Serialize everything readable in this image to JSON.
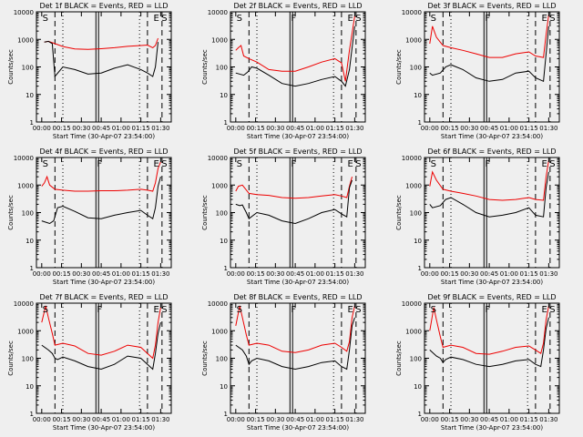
{
  "figure": {
    "xlabel": "Start Time (30-Apr-07 23:54:00)",
    "ylabel": "Counts/sec",
    "x_tick_labels": [
      "00:00",
      "00:15",
      "00:30",
      "00:45",
      "01:00",
      "01:15",
      "01:30"
    ],
    "y_tick_labels": [
      "1",
      "10",
      "100",
      "1000",
      "10000"
    ],
    "colors": {
      "events": "#000000",
      "lld": "#ee0000",
      "background": "#efefef"
    }
  },
  "chart_data": [
    {
      "type": "line",
      "title": "Det 1f BLACK = Events, RED = LLD",
      "xlabel": "Start Time (30-Apr-07 23:54:00)",
      "ylabel": "Counts/sec",
      "xlim": [
        -4,
        98
      ],
      "ylim": [
        1,
        10000
      ],
      "yscale": "log",
      "markers": [
        "S",
        "E",
        "S"
      ],
      "marker_x": [
        0,
        84,
        90
      ],
      "solid_lines": [
        41,
        43
      ],
      "dashed_lines": [
        10,
        80,
        91
      ],
      "dotted_lines": [
        16,
        74
      ],
      "series": [
        {
          "name": "LLD",
          "color": "#ee0000",
          "x": [
            2,
            5,
            10,
            16,
            25,
            35,
            45,
            55,
            65,
            75,
            80,
            84,
            86,
            88
          ],
          "y": [
            800,
            850,
            700,
            550,
            450,
            430,
            460,
            500,
            560,
            600,
            620,
            500,
            600,
            1100
          ]
        },
        {
          "name": "Events",
          "color": "#000000",
          "x": [
            2,
            5,
            8,
            10,
            16,
            25,
            35,
            45,
            55,
            65,
            75,
            80,
            84,
            86,
            88
          ],
          "y": [
            800,
            850,
            700,
            45,
            100,
            80,
            55,
            60,
            90,
            120,
            80,
            60,
            45,
            100,
            800
          ]
        }
      ]
    },
    {
      "type": "line",
      "title": "Det 2f BLACK = Events, RED = LLD",
      "xlabel": "Start Time (30-Apr-07 23:54:00)",
      "ylabel": "Counts/sec",
      "xlim": [
        -4,
        98
      ],
      "ylim": [
        1,
        10000
      ],
      "yscale": "log",
      "markers": [
        "S",
        "F",
        "E",
        "S"
      ],
      "marker_x": [
        0,
        41,
        84,
        90
      ],
      "solid_lines": [
        41,
        43
      ],
      "dashed_lines": [
        10,
        80,
        91
      ],
      "dotted_lines": [
        16,
        74
      ],
      "series": [
        {
          "name": "LLD",
          "color": "#ee0000",
          "x": [
            0,
            2,
            4,
            6,
            10,
            16,
            25,
            35,
            45,
            55,
            65,
            75,
            80,
            83,
            86,
            90
          ],
          "y": [
            400,
            500,
            600,
            250,
            200,
            150,
            80,
            70,
            70,
            100,
            150,
            200,
            140,
            30,
            400,
            7000
          ]
        },
        {
          "name": "Events",
          "color": "#000000",
          "x": [
            0,
            6,
            9,
            12,
            16,
            25,
            35,
            45,
            55,
            65,
            75,
            80,
            83,
            86,
            90
          ],
          "y": [
            60,
            50,
            65,
            100,
            90,
            50,
            25,
            20,
            25,
            35,
            45,
            30,
            20,
            80,
            3000
          ]
        }
      ]
    },
    {
      "type": "line",
      "title": "Det 3f BLACK = Events, RED = LLD",
      "xlabel": "Start Time (30-Apr-07 23:54:00)",
      "ylabel": "Counts/sec",
      "xlim": [
        -4,
        98
      ],
      "ylim": [
        1,
        10000
      ],
      "yscale": "log",
      "markers": [
        "S",
        "F",
        "E",
        "S"
      ],
      "marker_x": [
        0,
        41,
        84,
        90
      ],
      "solid_lines": [
        41,
        43
      ],
      "dashed_lines": [
        10,
        80,
        91
      ],
      "dotted_lines": [
        16,
        74
      ],
      "series": [
        {
          "name": "LLD",
          "color": "#ee0000",
          "x": [
            0,
            2,
            5,
            10,
            16,
            25,
            35,
            45,
            55,
            65,
            75,
            80,
            86,
            88,
            90
          ],
          "y": [
            700,
            3000,
            1200,
            600,
            500,
            400,
            300,
            220,
            220,
            300,
            350,
            250,
            220,
            1500,
            8000
          ]
        },
        {
          "name": "Events",
          "color": "#000000",
          "x": [
            0,
            2,
            8,
            12,
            16,
            25,
            35,
            45,
            55,
            65,
            75,
            80,
            86,
            88,
            90
          ],
          "y": [
            60,
            50,
            60,
            100,
            120,
            80,
            40,
            30,
            35,
            60,
            70,
            40,
            30,
            300,
            3000
          ]
        }
      ]
    },
    {
      "type": "line",
      "title": "Det 4f BLACK = Events, RED = LLD",
      "xlabel": "Start Time (30-Apr-07 23:54:00)",
      "ylabel": "Counts/sec",
      "xlim": [
        -4,
        98
      ],
      "ylim": [
        1,
        10000
      ],
      "yscale": "log",
      "markers": [
        "S",
        "F",
        "E",
        "S"
      ],
      "marker_x": [
        0,
        41,
        84,
        90
      ],
      "solid_lines": [
        41,
        43
      ],
      "dashed_lines": [
        10,
        80,
        91
      ],
      "dotted_lines": [
        16,
        74
      ],
      "series": [
        {
          "name": "LLD",
          "color": "#ee0000",
          "x": [
            0,
            2,
            4,
            6,
            10,
            16,
            25,
            35,
            45,
            55,
            65,
            75,
            80,
            84,
            86,
            88,
            90
          ],
          "y": [
            900,
            1200,
            2000,
            1000,
            700,
            650,
            600,
            600,
            620,
            620,
            650,
            700,
            650,
            600,
            1200,
            4000,
            7000
          ]
        },
        {
          "name": "Events",
          "color": "#000000",
          "x": [
            0,
            6,
            9,
            12,
            16,
            25,
            35,
            45,
            55,
            65,
            75,
            80,
            84,
            86,
            88,
            90
          ],
          "y": [
            50,
            40,
            50,
            150,
            170,
            110,
            65,
            60,
            80,
            100,
            120,
            80,
            60,
            150,
            900,
            2000
          ]
        }
      ]
    },
    {
      "type": "line",
      "title": "Det 5f BLACK = Events, RED = LLD",
      "xlabel": "Start Time (30-Apr-07 23:54:00)",
      "ylabel": "Counts/sec",
      "xlim": [
        -4,
        98
      ],
      "ylim": [
        1,
        10000
      ],
      "yscale": "log",
      "markers": [
        "S",
        "F",
        "E",
        "S"
      ],
      "marker_x": [
        0,
        41,
        84,
        90
      ],
      "solid_lines": [
        41,
        43
      ],
      "dashed_lines": [
        10,
        80,
        91
      ],
      "dotted_lines": [
        16,
        74
      ],
      "series": [
        {
          "name": "LLD",
          "color": "#ee0000",
          "x": [
            0,
            2,
            5,
            10,
            16,
            25,
            35,
            45,
            55,
            65,
            75,
            80,
            84,
            86,
            88
          ],
          "y": [
            600,
            900,
            1000,
            500,
            450,
            420,
            350,
            330,
            350,
            400,
            450,
            400,
            350,
            900,
            2000
          ]
        },
        {
          "name": "Events",
          "color": "#000000",
          "x": [
            0,
            3,
            5,
            8,
            10,
            16,
            25,
            35,
            45,
            55,
            65,
            75,
            80,
            84,
            86,
            88
          ],
          "y": [
            200,
            180,
            190,
            100,
            60,
            100,
            80,
            50,
            40,
            60,
            100,
            130,
            90,
            70,
            800,
            1500
          ]
        }
      ]
    },
    {
      "type": "line",
      "title": "Det 6f BLACK = Events, RED = LLD",
      "xlabel": "Start Time (30-Apr-07 23:54:00)",
      "ylabel": "Counts/sec",
      "xlim": [
        -4,
        98
      ],
      "ylim": [
        1,
        10000
      ],
      "yscale": "log",
      "markers": [
        "S",
        "F",
        "E",
        "S"
      ],
      "marker_x": [
        0,
        41,
        84,
        90
      ],
      "solid_lines": [
        41,
        43
      ],
      "dashed_lines": [
        10,
        80,
        91
      ],
      "dotted_lines": [
        16,
        74
      ],
      "series": [
        {
          "name": "LLD",
          "color": "#ee0000",
          "x": [
            0,
            2,
            5,
            10,
            16,
            25,
            35,
            45,
            55,
            65,
            75,
            80,
            86,
            88,
            90
          ],
          "y": [
            900,
            3000,
            1500,
            700,
            600,
            500,
            400,
            300,
            280,
            300,
            350,
            300,
            280,
            2000,
            8000
          ]
        },
        {
          "name": "Events",
          "color": "#000000",
          "x": [
            0,
            2,
            8,
            12,
            16,
            25,
            35,
            45,
            55,
            65,
            75,
            80,
            86,
            88,
            90
          ],
          "y": [
            200,
            150,
            180,
            300,
            350,
            200,
            100,
            70,
            80,
            100,
            150,
            80,
            70,
            800,
            3000
          ]
        }
      ]
    },
    {
      "type": "line",
      "title": "Det 7f BLACK = Events, RED = LLD",
      "xlabel": "Start Time (30-Apr-07 23:54:00)",
      "ylabel": "Counts/sec",
      "xlim": [
        -4,
        98
      ],
      "ylim": [
        1,
        10000
      ],
      "yscale": "log",
      "markers": [
        "S",
        "F",
        "E",
        "S"
      ],
      "marker_x": [
        0,
        41,
        84,
        90
      ],
      "solid_lines": [
        41,
        43
      ],
      "dashed_lines": [
        10,
        80,
        91
      ],
      "dotted_lines": [
        16,
        74
      ],
      "series": [
        {
          "name": "LLD",
          "color": "#ee0000",
          "x": [
            0,
            3,
            5,
            8,
            10,
            16,
            25,
            35,
            45,
            55,
            65,
            75,
            80,
            84,
            86,
            88,
            90
          ],
          "y": [
            2000,
            8000,
            3000,
            800,
            300,
            350,
            280,
            150,
            130,
            180,
            300,
            250,
            150,
            100,
            300,
            2000,
            7000
          ]
        },
        {
          "name": "Events",
          "color": "#000000",
          "x": [
            0,
            5,
            8,
            10,
            12,
            16,
            25,
            35,
            45,
            55,
            65,
            75,
            80,
            84,
            86,
            88,
            90
          ],
          "y": [
            300,
            200,
            150,
            100,
            90,
            110,
            80,
            50,
            40,
            60,
            120,
            100,
            60,
            40,
            150,
            800,
            2000
          ]
        }
      ]
    },
    {
      "type": "line",
      "title": "Det 8f BLACK = Events, RED = LLD",
      "xlabel": "Start Time (30-Apr-07 23:54:00)",
      "ylabel": "Counts/sec",
      "xlim": [
        -4,
        98
      ],
      "ylim": [
        1,
        10000
      ],
      "yscale": "log",
      "markers": [
        "S",
        "F",
        "E",
        "S"
      ],
      "marker_x": [
        0,
        41,
        84,
        90
      ],
      "solid_lines": [
        41,
        43
      ],
      "dashed_lines": [
        10,
        80,
        91
      ],
      "dotted_lines": [
        16,
        74
      ],
      "series": [
        {
          "name": "LLD",
          "color": "#ee0000",
          "x": [
            0,
            3,
            5,
            8,
            10,
            16,
            25,
            35,
            45,
            55,
            65,
            75,
            80,
            84,
            86,
            88,
            90
          ],
          "y": [
            1500,
            8000,
            3000,
            700,
            300,
            350,
            300,
            180,
            160,
            200,
            300,
            350,
            250,
            180,
            400,
            3000,
            8000
          ]
        },
        {
          "name": "Events",
          "color": "#000000",
          "x": [
            0,
            5,
            8,
            10,
            12,
            16,
            25,
            35,
            45,
            55,
            65,
            75,
            80,
            84,
            86,
            88,
            90
          ],
          "y": [
            300,
            200,
            120,
            60,
            80,
            100,
            80,
            50,
            40,
            50,
            70,
            80,
            50,
            40,
            200,
            1500,
            3000
          ]
        }
      ]
    },
    {
      "type": "line",
      "title": "Det 9f BLACK = Events, RED = LLD",
      "xlabel": "Start Time (30-Apr-07 23:54:00)",
      "ylabel": "Counts/sec",
      "xlim": [
        -4,
        98
      ],
      "ylim": [
        1,
        10000
      ],
      "yscale": "log",
      "markers": [
        "S",
        "F",
        "E",
        "S"
      ],
      "marker_x": [
        0,
        41,
        84,
        90
      ],
      "solid_lines": [
        41,
        43
      ],
      "dashed_lines": [
        10,
        80,
        91
      ],
      "dotted_lines": [
        16,
        74
      ],
      "series": [
        {
          "name": "LLD",
          "color": "#ee0000",
          "x": [
            0,
            3,
            5,
            8,
            10,
            16,
            25,
            35,
            45,
            55,
            65,
            75,
            80,
            84,
            86,
            88,
            90
          ],
          "y": [
            1000,
            7000,
            2500,
            600,
            250,
            300,
            250,
            150,
            140,
            180,
            250,
            280,
            200,
            150,
            350,
            2500,
            8000
          ]
        },
        {
          "name": "Events",
          "color": "#000000",
          "x": [
            0,
            5,
            8,
            10,
            12,
            16,
            25,
            35,
            45,
            55,
            65,
            75,
            80,
            84,
            86,
            88,
            90
          ],
          "y": [
            200,
            120,
            100,
            70,
            90,
            110,
            90,
            60,
            50,
            60,
            80,
            90,
            60,
            50,
            200,
            1200,
            3000
          ]
        }
      ]
    }
  ]
}
